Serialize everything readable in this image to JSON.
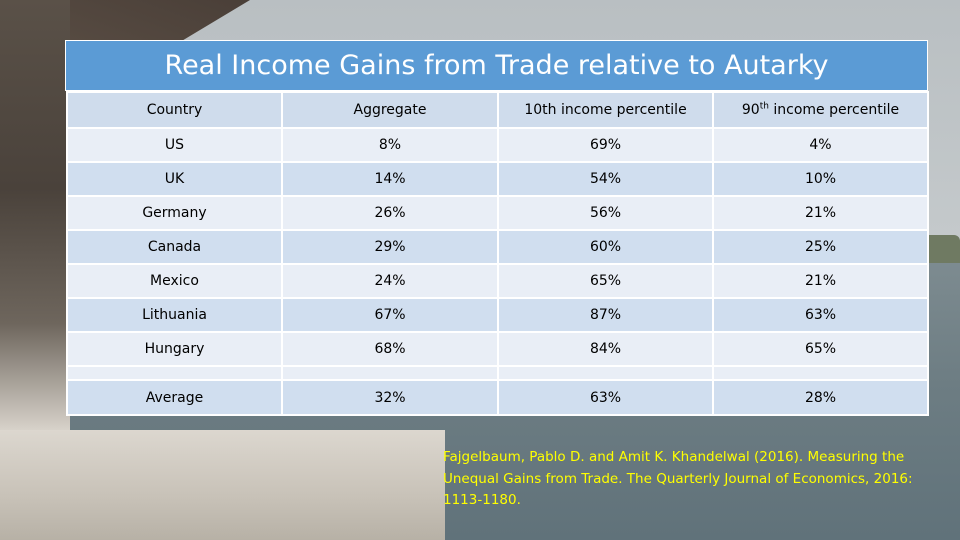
{
  "title": "Real Income Gains from Trade relative to Autarky",
  "table": {
    "headers": {
      "country": "Country",
      "aggregate": "Aggregate",
      "p10": "10th income percentile",
      "p90_number": "90",
      "p90_sup": "th",
      "p90_rest": " income percentile"
    },
    "rows": [
      {
        "country": "US",
        "aggregate": "8%",
        "p10": "69%",
        "p90": "4%"
      },
      {
        "country": "UK",
        "aggregate": "14%",
        "p10": "54%",
        "p90": "10%"
      },
      {
        "country": "Germany",
        "aggregate": "26%",
        "p10": "56%",
        "p90": "21%"
      },
      {
        "country": "Canada",
        "aggregate": "29%",
        "p10": "60%",
        "p90": "25%"
      },
      {
        "country": "Mexico",
        "aggregate": "24%",
        "p10": "65%",
        "p90": "21%"
      },
      {
        "country": "Lithuania",
        "aggregate": "67%",
        "p10": "87%",
        "p90": "63%"
      },
      {
        "country": "Hungary",
        "aggregate": "68%",
        "p10": "84%",
        "p90": "65%"
      }
    ],
    "average": {
      "country": "Average",
      "aggregate": "32%",
      "p10": "63%",
      "p90": "28%"
    }
  },
  "citation": "Fajgelbaum, Pablo D. and Amit K. Khandelwal (2016). Measuring the Unequal Gains from Trade. The Quarterly Journal of Economics, 2016: 1113-1180.",
  "colors": {
    "title_bar": "#5b9bd5",
    "row_light": "#e9eef6",
    "row_dark": "#d0deef",
    "citation_text": "#ffff00"
  }
}
